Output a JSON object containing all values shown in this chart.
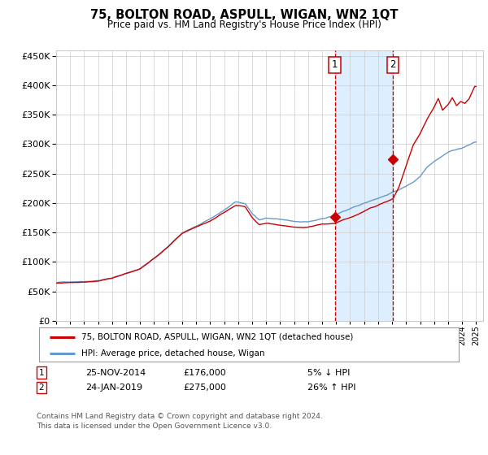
{
  "title": "75, BOLTON ROAD, ASPULL, WIGAN, WN2 1QT",
  "subtitle": "Price paid vs. HM Land Registry's House Price Index (HPI)",
  "legend_line1": "75, BOLTON ROAD, ASPULL, WIGAN, WN2 1QT (detached house)",
  "legend_line2": "HPI: Average price, detached house, Wigan",
  "annotation1_date": "25-NOV-2014",
  "annotation1_year": 2014.9,
  "annotation1_price": 176000,
  "annotation1_pct": "5% ↓ HPI",
  "annotation2_date": "24-JAN-2019",
  "annotation2_year": 2019.07,
  "annotation2_price": 275000,
  "annotation2_pct": "26% ↑ HPI",
  "footnote": "Contains HM Land Registry data © Crown copyright and database right 2024.\nThis data is licensed under the Open Government Licence v3.0.",
  "red_color": "#cc0000",
  "blue_color": "#6699cc",
  "shade_color": "#ddeeff",
  "grid_color": "#cccccc",
  "bg_color": "#ffffff",
  "ylim": [
    0,
    460000
  ],
  "yticks": [
    0,
    50000,
    100000,
    150000,
    200000,
    250000,
    300000,
    350000,
    400000,
    450000
  ],
  "xlim_start": 1995.0,
  "xlim_end": 2025.5
}
